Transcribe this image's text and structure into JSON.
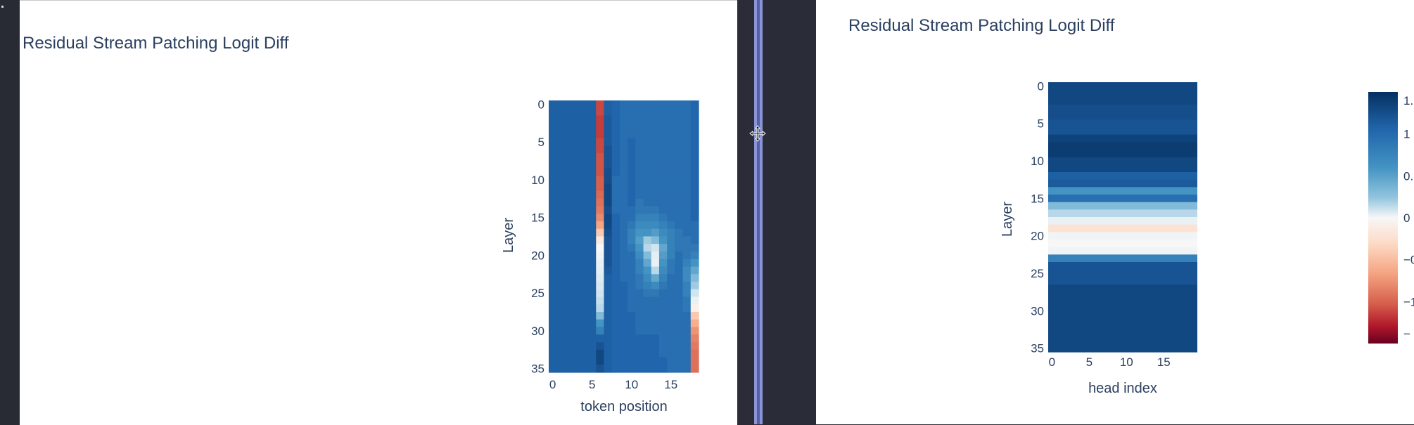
{
  "left_chart": {
    "title": "Residual Stream Patching Logit Diff",
    "xlabel": "token position",
    "ylabel": "Layer",
    "x_ticks": [
      "0",
      "5",
      "10",
      "15"
    ],
    "y_ticks": [
      "0",
      "5",
      "10",
      "15",
      "20",
      "25",
      "30",
      "35"
    ]
  },
  "right_chart": {
    "title": "Residual Stream Patching Logit Diff",
    "xlabel": "head index",
    "ylabel": "Layer",
    "x_ticks": [
      "0",
      "5",
      "10",
      "15"
    ],
    "y_ticks": [
      "0",
      "5",
      "10",
      "15",
      "20",
      "25",
      "30",
      "35"
    ],
    "colorbar_ticks": [
      "1.",
      "1",
      "0.",
      "0",
      "−0",
      "−1",
      "−"
    ]
  },
  "colors": {
    "scale_min": "#67001f",
    "scale_mid": "#f7f7f7",
    "scale_max": "#053061",
    "text": "#2a3f5f",
    "background_dark": "#282a34"
  },
  "chart_data": [
    {
      "type": "heatmap",
      "title": "Residual Stream Patching Logit Diff",
      "xlabel": "token position",
      "ylabel": "Layer",
      "x_range": [
        0,
        19
      ],
      "y_range": [
        0,
        35
      ],
      "colorscale": "RdBu",
      "z_range": [
        -1.5,
        1.5
      ],
      "columns": [
        [
          1.1,
          1.1,
          1.1,
          1.1,
          1.1,
          1.1,
          1.1,
          1.1,
          1.1,
          1.1,
          1.1,
          1.1,
          1.1,
          1.1,
          1.1,
          1.1,
          1.1,
          1.1,
          1.1,
          1.1,
          1.1,
          1.1,
          1.1,
          1.1,
          1.1,
          1.1,
          1.1,
          1.1,
          1.1,
          1.1,
          1.1,
          1.1,
          1.1,
          1.1,
          1.1,
          1.1
        ],
        [
          1.1,
          1.1,
          1.1,
          1.1,
          1.1,
          1.1,
          1.1,
          1.1,
          1.1,
          1.1,
          1.1,
          1.1,
          1.1,
          1.1,
          1.1,
          1.1,
          1.1,
          1.1,
          1.1,
          1.1,
          1.1,
          1.1,
          1.1,
          1.1,
          1.1,
          1.1,
          1.1,
          1.1,
          1.1,
          1.1,
          1.1,
          1.1,
          1.1,
          1.1,
          1.1,
          1.1
        ],
        [
          1.1,
          1.1,
          1.1,
          1.1,
          1.1,
          1.1,
          1.1,
          1.1,
          1.1,
          1.1,
          1.1,
          1.1,
          1.1,
          1.1,
          1.1,
          1.1,
          1.1,
          1.1,
          1.1,
          1.1,
          1.1,
          1.1,
          1.1,
          1.1,
          1.1,
          1.1,
          1.1,
          1.1,
          1.1,
          1.1,
          1.1,
          1.1,
          1.1,
          1.1,
          1.1,
          1.1
        ],
        [
          1.1,
          1.1,
          1.1,
          1.1,
          1.1,
          1.1,
          1.1,
          1.1,
          1.1,
          1.1,
          1.1,
          1.1,
          1.1,
          1.1,
          1.1,
          1.1,
          1.1,
          1.1,
          1.1,
          1.1,
          1.1,
          1.1,
          1.1,
          1.1,
          1.1,
          1.1,
          1.1,
          1.1,
          1.1,
          1.1,
          1.1,
          1.1,
          1.1,
          1.1,
          1.1,
          1.1
        ],
        [
          1.1,
          1.1,
          1.1,
          1.1,
          1.1,
          1.1,
          1.1,
          1.1,
          1.1,
          1.1,
          1.1,
          1.1,
          1.1,
          1.1,
          1.1,
          1.1,
          1.1,
          1.1,
          1.1,
          1.1,
          1.1,
          1.1,
          1.1,
          1.1,
          1.1,
          1.1,
          1.1,
          1.1,
          1.1,
          1.1,
          1.1,
          1.1,
          1.1,
          1.1,
          1.1,
          1.1
        ],
        [
          1.1,
          1.1,
          1.1,
          1.1,
          1.1,
          1.1,
          1.1,
          1.1,
          1.1,
          1.1,
          1.1,
          1.1,
          1.1,
          1.1,
          1.1,
          1.1,
          1.1,
          1.1,
          1.1,
          1.1,
          1.1,
          1.1,
          1.1,
          1.1,
          1.1,
          1.1,
          1.1,
          1.1,
          1.1,
          1.1,
          1.1,
          1.1,
          1.1,
          1.1,
          1.1,
          1.1
        ],
        [
          -1.0,
          -1.0,
          -1.05,
          -1.05,
          -1.05,
          -1.0,
          -1.0,
          -0.95,
          -0.95,
          -0.95,
          -0.9,
          -0.9,
          -0.85,
          -0.8,
          -0.75,
          -0.65,
          -0.5,
          -0.3,
          -0.1,
          0.0,
          0.05,
          0.1,
          0.15,
          0.2,
          0.25,
          0.3,
          0.35,
          0.4,
          0.6,
          0.8,
          0.9,
          1.1,
          1.2,
          1.3,
          1.3,
          1.2
        ],
        [
          1.1,
          1.1,
          1.15,
          1.15,
          1.15,
          1.15,
          1.2,
          1.2,
          1.2,
          1.25,
          1.25,
          1.3,
          1.3,
          1.3,
          1.25,
          1.3,
          1.3,
          1.25,
          1.2,
          1.2,
          1.2,
          1.2,
          1.15,
          1.1,
          1.1,
          1.1,
          1.1,
          1.1,
          1.1,
          1.1,
          1.1,
          1.1,
          1.1,
          1.1,
          1.1,
          1.1
        ],
        [
          1.05,
          1.05,
          1.05,
          1.05,
          1.05,
          1.05,
          1.05,
          1.05,
          1.05,
          1.05,
          1.0,
          1.0,
          1.0,
          1.0,
          1.0,
          1.05,
          1.05,
          1.05,
          1.05,
          1.05,
          1.05,
          1.05,
          1.05,
          1.05,
          1.05,
          1.05,
          1.05,
          1.05,
          1.05,
          1.05,
          1.05,
          1.05,
          1.05,
          1.05,
          1.05,
          1.05
        ],
        [
          1.0,
          1.0,
          1.0,
          1.0,
          1.0,
          1.0,
          1.0,
          1.0,
          1.0,
          1.0,
          1.0,
          1.0,
          1.0,
          1.0,
          1.0,
          1.0,
          1.0,
          1.0,
          1.0,
          1.0,
          1.0,
          1.0,
          1.0,
          1.0,
          1.05,
          1.05,
          1.05,
          1.05,
          1.05,
          1.05,
          1.05,
          1.05,
          1.05,
          1.05,
          1.05,
          1.05
        ],
        [
          1.0,
          1.0,
          1.0,
          1.0,
          1.0,
          1.05,
          1.05,
          1.05,
          1.05,
          1.05,
          1.05,
          1.05,
          1.05,
          1.05,
          1.0,
          1.0,
          0.95,
          0.9,
          0.9,
          0.95,
          1.0,
          1.0,
          1.0,
          1.0,
          1.0,
          1.0,
          1.0,
          1.0,
          1.05,
          1.05,
          1.05,
          1.05,
          1.05,
          1.05,
          1.05,
          1.05
        ],
        [
          1.0,
          1.0,
          1.0,
          1.0,
          1.0,
          1.0,
          1.0,
          1.0,
          1.0,
          1.0,
          1.0,
          1.0,
          1.0,
          0.95,
          0.95,
          0.9,
          0.85,
          0.8,
          0.75,
          0.8,
          0.85,
          0.9,
          0.9,
          0.95,
          0.95,
          1.0,
          1.0,
          1.0,
          1.0,
          1.0,
          1.0,
          1.05,
          1.05,
          1.05,
          1.05,
          1.05
        ],
        [
          1.0,
          1.0,
          1.0,
          1.0,
          1.0,
          1.0,
          1.0,
          1.0,
          1.0,
          1.0,
          1.0,
          1.0,
          1.0,
          1.0,
          0.95,
          0.9,
          0.85,
          0.8,
          0.5,
          0.4,
          0.6,
          0.7,
          0.8,
          0.85,
          0.9,
          0.95,
          1.0,
          1.0,
          1.0,
          1.0,
          1.0,
          1.05,
          1.05,
          1.05,
          1.05,
          1.05
        ],
        [
          1.0,
          1.0,
          1.0,
          1.0,
          1.0,
          1.0,
          1.0,
          1.0,
          1.0,
          1.0,
          1.0,
          1.0,
          1.0,
          1.0,
          0.95,
          0.9,
          0.85,
          0.75,
          0.6,
          0.3,
          0.15,
          0.1,
          0.4,
          0.7,
          0.85,
          0.95,
          1.0,
          1.0,
          1.0,
          1.0,
          1.0,
          1.05,
          1.05,
          1.05,
          1.05,
          1.05
        ],
        [
          1.0,
          1.0,
          1.0,
          1.0,
          1.0,
          1.0,
          1.0,
          1.0,
          1.0,
          1.0,
          1.0,
          1.0,
          1.0,
          1.0,
          1.0,
          0.95,
          0.9,
          0.85,
          0.8,
          0.7,
          0.75,
          0.8,
          0.85,
          0.9,
          0.95,
          1.0,
          1.0,
          1.0,
          1.0,
          1.0,
          1.0,
          1.0,
          1.0,
          1.0,
          1.05,
          1.05
        ],
        [
          1.0,
          1.0,
          1.0,
          1.0,
          1.0,
          1.0,
          1.0,
          1.0,
          1.0,
          1.0,
          1.0,
          1.0,
          1.0,
          1.0,
          1.0,
          1.0,
          0.95,
          0.9,
          0.9,
          0.9,
          0.9,
          0.95,
          0.95,
          1.0,
          1.0,
          1.0,
          1.0,
          1.0,
          1.0,
          1.0,
          1.0,
          1.0,
          1.0,
          1.0,
          1.0,
          1.0
        ],
        [
          1.0,
          1.0,
          1.0,
          1.0,
          1.0,
          1.0,
          1.0,
          1.0,
          1.0,
          1.0,
          1.0,
          1.0,
          1.0,
          1.0,
          1.0,
          1.0,
          1.0,
          0.95,
          0.95,
          0.95,
          1.0,
          1.0,
          1.0,
          1.0,
          1.0,
          1.0,
          1.0,
          1.0,
          1.0,
          1.0,
          1.0,
          1.0,
          1.0,
          1.0,
          1.0,
          1.0
        ],
        [
          1.0,
          1.0,
          1.0,
          1.0,
          1.0,
          1.0,
          1.0,
          1.0,
          1.0,
          1.0,
          1.0,
          1.0,
          1.0,
          1.0,
          1.0,
          1.0,
          1.0,
          1.0,
          0.95,
          0.95,
          0.95,
          0.9,
          0.85,
          0.85,
          0.9,
          0.9,
          0.95,
          0.95,
          1.0,
          1.0,
          1.0,
          1.0,
          1.0,
          1.0,
          1.0,
          1.0
        ],
        [
          1.05,
          1.05,
          1.05,
          1.05,
          1.05,
          1.05,
          1.05,
          1.05,
          1.05,
          1.05,
          1.05,
          1.05,
          1.05,
          1.05,
          1.05,
          1.05,
          1.0,
          1.0,
          1.0,
          0.95,
          0.9,
          0.8,
          0.7,
          0.6,
          0.5,
          0.3,
          0.1,
          -0.05,
          -0.3,
          -0.45,
          -0.6,
          -0.7,
          -0.75,
          -0.8,
          -0.8,
          -0.8
        ]
      ]
    },
    {
      "type": "heatmap",
      "title": "Residual Stream Patching Logit Diff",
      "xlabel": "head index",
      "ylabel": "Layer",
      "x_range": [
        0,
        19
      ],
      "y_range": [
        0,
        35
      ],
      "colorscale": "RdBu",
      "z_range": [
        -1.5,
        1.5
      ],
      "row_values": [
        1.3,
        1.3,
        1.3,
        1.25,
        1.25,
        1.2,
        1.2,
        1.35,
        1.4,
        1.4,
        1.3,
        1.3,
        1.1,
        1.15,
        0.8,
        1.0,
        0.6,
        0.4,
        0.1,
        -0.15,
        0.05,
        0.0,
        0.05,
        0.9,
        1.2,
        1.2,
        1.2,
        1.3,
        1.3,
        1.3,
        1.3,
        1.3,
        1.3,
        1.3,
        1.3,
        1.3
      ]
    }
  ]
}
